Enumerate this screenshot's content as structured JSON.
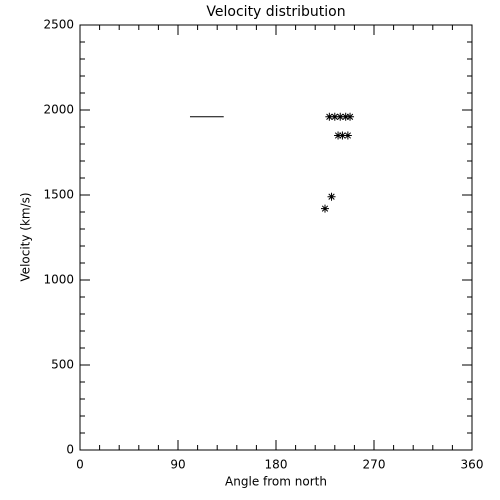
{
  "chart_data": {
    "type": "scatter",
    "title": "Velocity distribution",
    "x_label": "Angle from north",
    "y_label": "Velocity (km/s)",
    "xlim": [
      0,
      360
    ],
    "xticks": [
      0,
      90,
      180,
      270,
      360
    ],
    "xminor": 5,
    "ylim": [
      0,
      2500
    ],
    "yticks": [
      0,
      500,
      1000,
      1500,
      2000,
      2500
    ],
    "yminor": 5,
    "color": "#000000",
    "series": [
      {
        "style": "asterisk",
        "x": [
          229,
          234,
          239,
          244,
          248,
          237,
          241,
          246,
          231,
          225
        ],
        "values": [
          1960,
          1960,
          1960,
          1960,
          1960,
          1850,
          1850,
          1850,
          1490,
          1420
        ]
      },
      {
        "style": "line",
        "x": [
          101,
          132
        ],
        "values": [
          1960,
          1960
        ]
      }
    ]
  }
}
